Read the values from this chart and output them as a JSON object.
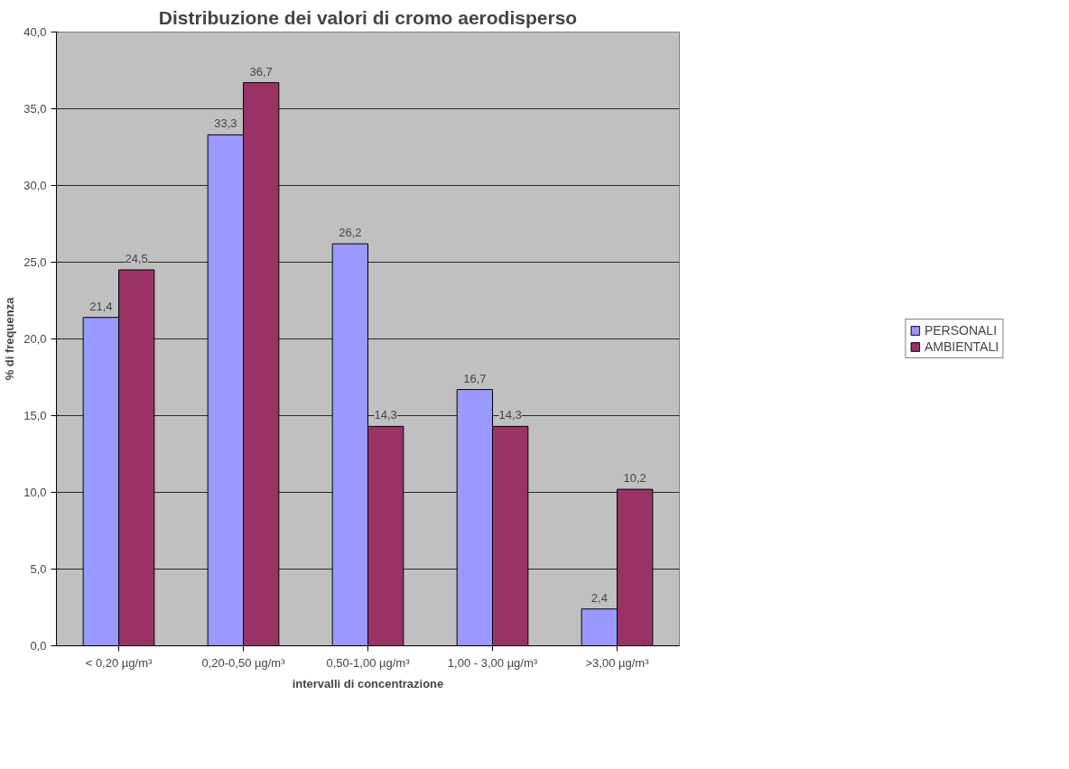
{
  "chart_data": {
    "type": "bar",
    "title": "Distribuzione dei valori di cromo aerodisperso",
    "xlabel": "intervalli di concentrazione",
    "ylabel": "% di frequenza",
    "categories": [
      "< 0,20 µg/m³",
      "0,20-0,50 µg/m³",
      "0,50-1,00 µg/m³",
      "1,00 - 3,00 µg/m³",
      ">3,00 µg/m³"
    ],
    "series": [
      {
        "name": "PERSONALI",
        "color": "#9999ff",
        "values": [
          21.4,
          33.3,
          26.2,
          16.7,
          2.4
        ],
        "value_labels": [
          "21,4",
          "33,3",
          "26,2",
          "16,7",
          "2,4"
        ]
      },
      {
        "name": "AMBIENTALI",
        "color": "#993366",
        "values": [
          24.5,
          36.7,
          14.3,
          14.3,
          10.2
        ],
        "value_labels": [
          "24,5",
          "36,7",
          "14,3",
          "14,3",
          "10,2"
        ]
      }
    ],
    "ylim": [
      0,
      40
    ],
    "yticks": [
      {
        "value": 0,
        "label": "0,0"
      },
      {
        "value": 5,
        "label": "5,0"
      },
      {
        "value": 10,
        "label": "10,0"
      },
      {
        "value": 15,
        "label": "15,0"
      },
      {
        "value": 20,
        "label": "20,0"
      },
      {
        "value": 25,
        "label": "25,0"
      },
      {
        "value": 30,
        "label": "30,0"
      },
      {
        "value": 35,
        "label": "35,0"
      },
      {
        "value": 40,
        "label": "40,0"
      }
    ],
    "grid": "y",
    "legend": "right"
  }
}
